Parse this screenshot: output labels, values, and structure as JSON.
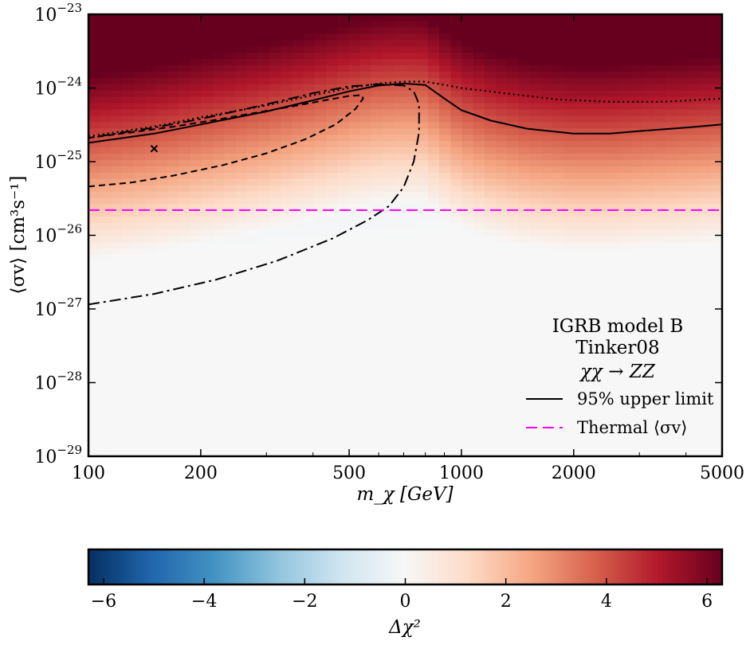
{
  "chart_data": {
    "type": "heatmap",
    "xlabel": "m_χ [GeV]",
    "ylabel": "⟨σv⟩ [cm³s⁻¹]",
    "x_scale": "log",
    "y_scale": "log",
    "xlim": [
      100,
      5000
    ],
    "ylim": [
      1e-29,
      1e-23
    ],
    "x_ticks": [
      100,
      200,
      500,
      1000,
      2000,
      5000
    ],
    "x_tick_labels": [
      "100",
      "200",
      "500",
      "1000",
      "2000",
      "5000"
    ],
    "y_ticks": [
      1e-29,
      1e-28,
      1e-27,
      1e-26,
      1e-25,
      1e-24,
      1e-23
    ],
    "y_tick_bases": [
      "10",
      "10",
      "10",
      "10",
      "10",
      "10",
      "10"
    ],
    "y_tick_exps": [
      "−29",
      "−28",
      "−27",
      "−26",
      "−25",
      "−24",
      "−23"
    ],
    "annotation_lines": [
      "IGRB model B",
      "Tinker08",
      "χχ → ZZ"
    ],
    "legend": {
      "placement": "lower-right",
      "entries": [
        {
          "label": "95% upper limit",
          "style": "solid",
          "color": "#000000"
        },
        {
          "label": "Thermal ⟨σv⟩",
          "style": "dashed",
          "color": "#ff00ff"
        }
      ]
    },
    "best_fit": {
      "x": 150,
      "y": 1.5e-25,
      "marker": "×"
    },
    "thermal_cross_section": 2.2e-26,
    "upper_limit_95": {
      "x": [
        100,
        150,
        200,
        300,
        400,
        500,
        600,
        700,
        800,
        900,
        1000,
        1200,
        1500,
        2000,
        2500,
        3000,
        4000,
        5000
      ],
      "y": [
        1.8e-25,
        2.4e-25,
        3.2e-25,
        4.8e-25,
        6.8e-25,
        9e-25,
        1.08e-24,
        1.15e-24,
        1.1e-24,
        7.2e-25,
        5e-25,
        3.6e-25,
        2.8e-25,
        2.4e-25,
        2.4e-25,
        2.6e-25,
        2.9e-25,
        3.2e-25
      ]
    },
    "contours": [
      {
        "style": "dashed",
        "x": [
          100,
          130,
          170,
          230,
          300,
          380,
          460,
          520,
          545,
          540,
          500,
          430,
          350,
          280,
          220,
          170,
          130,
          100
        ],
        "y": [
          4.6e-26,
          5.2e-26,
          6.5e-26,
          9e-26,
          1.3e-25,
          2e-25,
          3.2e-25,
          5.2e-25,
          7.2e-25,
          8e-25,
          7.8e-25,
          6.8e-25,
          5.6e-25,
          4.6e-25,
          3.7e-25,
          3e-25,
          2.5e-25,
          2.1e-25
        ]
      },
      {
        "style": "dashdot",
        "x": [
          100,
          150,
          220,
          320,
          450,
          560,
          640,
          700,
          745,
          770,
          770,
          745,
          700,
          600,
          500,
          400,
          300,
          200,
          150,
          100
        ],
        "y": [
          1.15e-27,
          1.6e-27,
          2.5e-27,
          4.5e-27,
          9e-27,
          1.6e-26,
          2.5e-26,
          4.5e-26,
          1e-25,
          2.5e-25,
          6e-25,
          9e-25,
          1.08e-24,
          1.12e-24,
          1.05e-24,
          8.5e-25,
          6e-25,
          3.8e-25,
          2.9e-25,
          2.1e-25
        ]
      },
      {
        "style": "dotted",
        "x": [
          100,
          150,
          200,
          300,
          400,
          500,
          600,
          700,
          800,
          900,
          1000,
          1300,
          1800,
          2500,
          3500,
          5000
        ],
        "y": [
          2.2e-25,
          3e-25,
          4e-25,
          5.8e-25,
          8e-25,
          1e-24,
          1.15e-24,
          1.22e-24,
          1.22e-24,
          1.1e-24,
          1e-24,
          8.5e-25,
          7e-25,
          6.5e-25,
          6.5e-25,
          7.2e-25
        ]
      }
    ],
    "colorbar": {
      "label": "Δχ²",
      "range": [
        -6.3,
        6.3
      ],
      "ticks": [
        -6,
        -4,
        -2,
        0,
        2,
        4,
        6
      ],
      "tick_labels": [
        "−6",
        "−4",
        "−2",
        "0",
        "2",
        "4",
        "6"
      ],
      "colormap": [
        "#053061",
        "#2166ac",
        "#4393c3",
        "#92c5de",
        "#d1e5f0",
        "#f7f7f7",
        "#fddbc7",
        "#f4a582",
        "#d6604d",
        "#b2182b",
        "#67001f"
      ]
    }
  }
}
